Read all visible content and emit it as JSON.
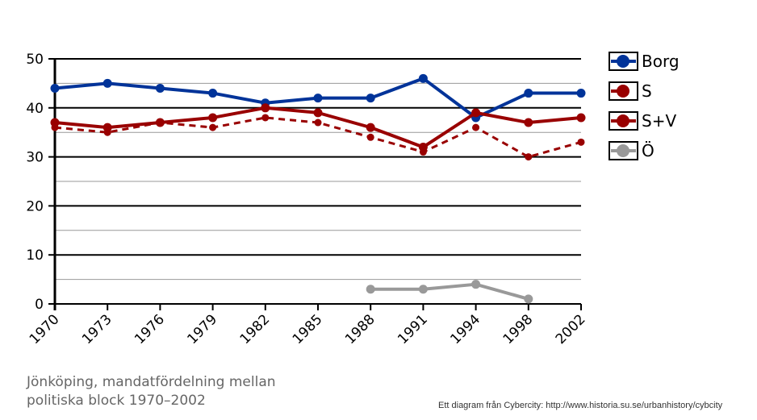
{
  "chart_data": {
    "type": "line",
    "title": "Jönköping, mandatfördelning mellan politiska block 1970–2002",
    "xlabel": "",
    "ylabel": "",
    "categories": [
      "1970",
      "1973",
      "1976",
      "1979",
      "1982",
      "1985",
      "1988",
      "1991",
      "1994",
      "1998",
      "2002"
    ],
    "ylim": [
      0,
      50
    ],
    "yticks": [
      "0",
      "10",
      "20",
      "30",
      "40",
      "50"
    ],
    "grid": true,
    "legend_position": "right",
    "series": [
      {
        "name": "Borg",
        "color": "#003399",
        "dashed": false,
        "values": [
          44,
          45,
          44,
          43,
          41,
          42,
          42,
          46,
          38,
          43,
          43
        ]
      },
      {
        "name": "S",
        "color": "#990000",
        "dashed": true,
        "values": [
          36,
          35,
          37,
          36,
          38,
          37,
          34,
          31,
          36,
          30,
          33
        ]
      },
      {
        "name": "S+V",
        "color": "#990000",
        "dashed": false,
        "values": [
          37,
          36,
          37,
          38,
          40,
          39,
          36,
          32,
          39,
          37,
          38
        ]
      },
      {
        "name": "Ö",
        "color": "#999999",
        "dashed": false,
        "values": [
          null,
          null,
          null,
          null,
          null,
          null,
          3,
          3,
          4,
          1,
          null
        ]
      }
    ]
  },
  "caption": "Jönköping, mandatfördelning mellan politiska block 1970–2002",
  "credit": "Ett diagram från Cybercity: http://www.historia.su.se/urbanhistory/cybcity"
}
